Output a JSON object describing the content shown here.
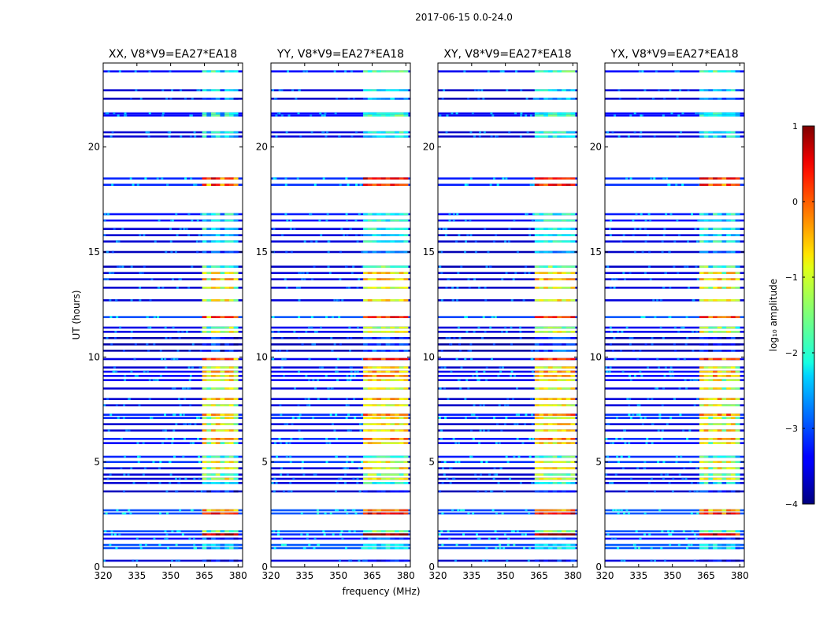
{
  "figure": {
    "suptitle": "2017-06-15 0.0-24.0",
    "xlabel": "frequency (MHz)",
    "ylabel": "UT (hours)",
    "colorbar_label": "log₁₀ amplitude",
    "colormap": "jet"
  },
  "chart_data": {
    "type": "heatmap",
    "title": "2017-06-15 0.0-24.0",
    "xlabel": "frequency (MHz)",
    "ylabel": "UT (hours)",
    "xlim": [
      320,
      382
    ],
    "ylim": [
      0,
      24
    ],
    "xticks": [
      320,
      335,
      350,
      365,
      380
    ],
    "yticks": [
      0,
      5,
      10,
      15,
      20
    ],
    "rfi_band_mhz": [
      362,
      380
    ],
    "panels": [
      {
        "title": "XX, V8*V9=EA27*EA18",
        "polarization": "XX",
        "rfi_start_mhz": 364
      },
      {
        "title": "YY, V8*V9=EA27*EA18",
        "polarization": "YY",
        "rfi_start_mhz": 361
      },
      {
        "title": "XY, V8*V9=EA27*EA18",
        "polarization": "XY",
        "rfi_start_mhz": 363
      },
      {
        "title": "YX, V8*V9=EA27*EA18",
        "polarization": "YX",
        "rfi_start_mhz": 362
      }
    ],
    "scans": [
      {
        "t": 0.3,
        "bg": -3.6,
        "rfi": -3.3
      },
      {
        "t": 0.9,
        "bg": -3.0,
        "rfi": -2.2
      },
      {
        "t": 1.05,
        "bg": -3.0,
        "rfi": -2.2
      },
      {
        "t": 1.35,
        "bg": -3.4,
        "rfi": -3.0
      },
      {
        "t": 1.55,
        "bg": -3.2,
        "rfi": 0.8
      },
      {
        "t": 1.7,
        "bg": -3.0,
        "rfi": -1.5
      },
      {
        "t": 2.55,
        "bg": -3.0,
        "rfi": 0.4
      },
      {
        "t": 2.7,
        "bg": -3.0,
        "rfi": -0.3
      },
      {
        "t": 3.6,
        "bg": -3.7,
        "rfi": -3.2
      },
      {
        "t": 4.0,
        "bg": -3.6,
        "rfi": -2.0
      },
      {
        "t": 4.2,
        "bg": -3.6,
        "rfi": -0.9
      },
      {
        "t": 4.4,
        "bg": -3.6,
        "rfi": -1.5
      },
      {
        "t": 4.7,
        "bg": -3.6,
        "rfi": -0.9
      },
      {
        "t": 5.0,
        "bg": -3.1,
        "rfi": -1.0
      },
      {
        "t": 5.25,
        "bg": -3.2,
        "rfi": -1.8
      },
      {
        "t": 5.9,
        "bg": -3.4,
        "rfi": -0.8
      },
      {
        "t": 6.1,
        "bg": -3.2,
        "rfi": -0.3
      },
      {
        "t": 6.5,
        "bg": -3.6,
        "rfi": -0.7
      },
      {
        "t": 6.8,
        "bg": -3.6,
        "rfi": -0.8
      },
      {
        "t": 7.1,
        "bg": -3.2,
        "rfi": -0.9
      },
      {
        "t": 7.25,
        "bg": -3.2,
        "rfi": -0.2
      },
      {
        "t": 7.7,
        "bg": -3.6,
        "rfi": -1.0
      },
      {
        "t": 8.0,
        "bg": -3.6,
        "rfi": -0.6
      },
      {
        "t": 8.5,
        "bg": -3.6,
        "rfi": -1.0
      },
      {
        "t": 8.9,
        "bg": -3.4,
        "rfi": -0.8
      },
      {
        "t": 9.1,
        "bg": -3.4,
        "rfi": -0.4
      },
      {
        "t": 9.3,
        "bg": -3.4,
        "rfi": -0.5
      },
      {
        "t": 9.5,
        "bg": -3.6,
        "rfi": -0.9
      },
      {
        "t": 9.9,
        "bg": -3.5,
        "rfi": 0.2
      },
      {
        "t": 10.3,
        "bg": -3.8,
        "rfi": -3.0
      },
      {
        "t": 10.6,
        "bg": -3.8,
        "rfi": -3.2
      },
      {
        "t": 10.9,
        "bg": -3.8,
        "rfi": -3.2
      },
      {
        "t": 11.2,
        "bg": -3.5,
        "rfi": -1.0
      },
      {
        "t": 11.4,
        "bg": -3.5,
        "rfi": -1.4
      },
      {
        "t": 11.9,
        "bg": -3.0,
        "rfi": 0.1
      },
      {
        "t": 12.7,
        "bg": -3.6,
        "rfi": -0.8
      },
      {
        "t": 13.3,
        "bg": -3.6,
        "rfi": -0.9
      },
      {
        "t": 13.7,
        "bg": -3.6,
        "rfi": -0.6
      },
      {
        "t": 14.0,
        "bg": -3.6,
        "rfi": -0.8
      },
      {
        "t": 14.3,
        "bg": -3.7,
        "rfi": -1.6
      },
      {
        "t": 15.0,
        "bg": -3.7,
        "rfi": -2.6
      },
      {
        "t": 15.5,
        "bg": -3.6,
        "rfi": -2.0
      },
      {
        "t": 15.8,
        "bg": -3.6,
        "rfi": -2.2
      },
      {
        "t": 16.1,
        "bg": -3.6,
        "rfi": -2.0
      },
      {
        "t": 16.5,
        "bg": -3.4,
        "rfi": -2.0
      },
      {
        "t": 16.8,
        "bg": -3.3,
        "rfi": -2.0
      },
      {
        "t": 18.2,
        "bg": -3.2,
        "rfi": 0.2
      },
      {
        "t": 18.5,
        "bg": -3.2,
        "rfi": 0.4
      },
      {
        "t": 20.5,
        "bg": -3.6,
        "rfi": -2.2
      },
      {
        "t": 20.7,
        "bg": -3.6,
        "rfi": -2.0
      },
      {
        "t": 21.5,
        "bg": -3.4,
        "rfi": -1.8
      },
      {
        "t": 21.6,
        "bg": -3.4,
        "rfi": -2.0
      },
      {
        "t": 22.3,
        "bg": -3.7,
        "rfi": -2.6
      },
      {
        "t": 22.7,
        "bg": -3.6,
        "rfi": -2.2
      },
      {
        "t": 23.6,
        "bg": -3.4,
        "rfi": -1.8
      }
    ],
    "colorbar": {
      "range": [
        -4,
        1
      ],
      "ticks": [
        -4,
        -3,
        -2,
        -1,
        0,
        1
      ]
    }
  }
}
